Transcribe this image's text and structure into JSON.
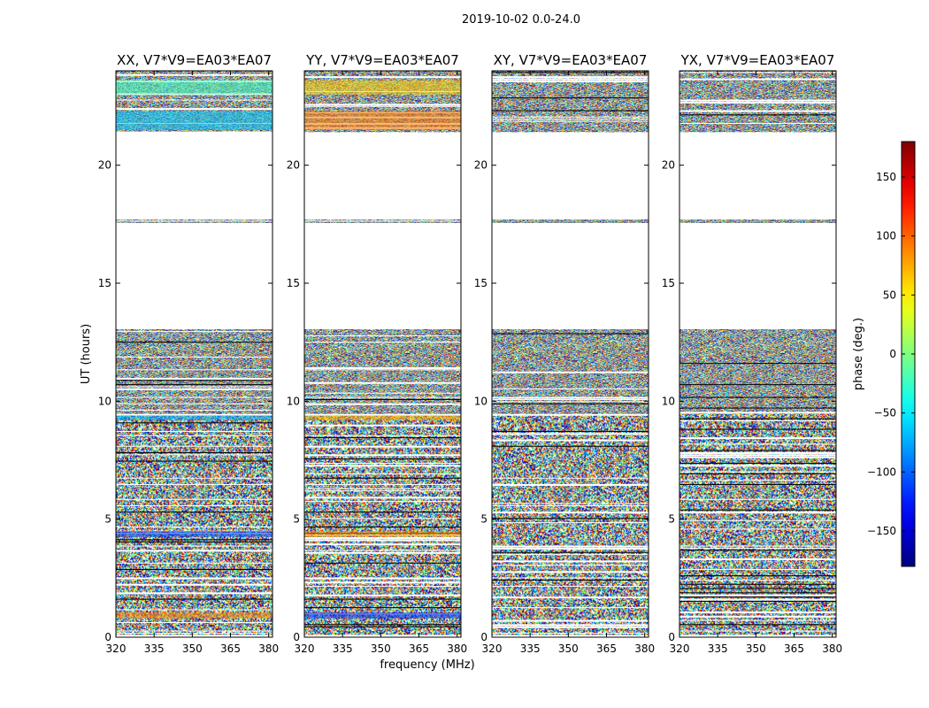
{
  "figure_title": "2019-10-02 0.0-24.0",
  "chart_data": [
    {
      "type": "heatmap",
      "title": "XX, V7*V9=EA03*EA07",
      "xlabel": "frequency (MHz)",
      "ylabel": "UT (hours)",
      "xlim": [
        320,
        381.5
      ],
      "ylim": [
        0,
        24
      ],
      "xticks": [
        "320",
        "335",
        "350",
        "365",
        "380"
      ],
      "yticks": [
        "0",
        "5",
        "10",
        "15",
        "20"
      ],
      "tint_bands": [
        [
          0.8,
          1.05,
          "#ff8a00"
        ],
        [
          4.25,
          4.5,
          "#0040ff"
        ],
        [
          9.2,
          9.4,
          "#00b0ff"
        ],
        [
          21.5,
          22.3,
          "#00c8ff"
        ],
        [
          23.0,
          23.6,
          "#40ffc0"
        ]
      ]
    },
    {
      "type": "heatmap",
      "title": "YY, V7*V9=EA03*EA07",
      "xlabel": "frequency (MHz)",
      "ylabel": "",
      "xlim": [
        320,
        381.5
      ],
      "ylim": [
        0,
        24
      ],
      "xticks": [
        "320",
        "335",
        "350",
        "365",
        "380"
      ],
      "yticks": [
        "0",
        "5",
        "10",
        "15",
        "20"
      ],
      "tint_bands": [
        [
          0.8,
          1.05,
          "#0030ff"
        ],
        [
          4.25,
          4.5,
          "#ff9a00"
        ],
        [
          9.2,
          9.4,
          "#ffb000"
        ],
        [
          21.5,
          22.3,
          "#ff7a00"
        ],
        [
          23.0,
          23.6,
          "#ffd000"
        ]
      ]
    },
    {
      "type": "heatmap",
      "title": "XY, V7*V9=EA03*EA07",
      "xlabel": "",
      "ylabel": "",
      "xlim": [
        320,
        381.5
      ],
      "ylim": [
        0,
        24
      ],
      "xticks": [
        "320",
        "335",
        "350",
        "365",
        "380"
      ],
      "yticks": [
        "0",
        "5",
        "10",
        "15",
        "20"
      ],
      "tint_bands": []
    },
    {
      "type": "heatmap",
      "title": "YX, V7*V9=EA03*EA07",
      "xlabel": "",
      "ylabel": "",
      "xlim": [
        320,
        381.5
      ],
      "ylim": [
        0,
        24
      ],
      "xticks": [
        "320",
        "335",
        "350",
        "365",
        "380"
      ],
      "yticks": [
        "0",
        "5",
        "10",
        "15",
        "20"
      ],
      "tint_bands": []
    }
  ],
  "data_bands_hours": [
    [
      0.1,
      9.45
    ],
    [
      9.45,
      12.0
    ],
    [
      12.0,
      13.05
    ],
    [
      17.55,
      17.7
    ],
    [
      21.4,
      24.0
    ]
  ],
  "colorbar": {
    "label": "phase (deg.)",
    "range": [
      -180,
      180
    ],
    "ticks": [
      "−150",
      "−100",
      "−50",
      "0",
      "50",
      "100",
      "150"
    ],
    "tick_values": [
      -150,
      -100,
      -50,
      0,
      50,
      100,
      150
    ]
  }
}
